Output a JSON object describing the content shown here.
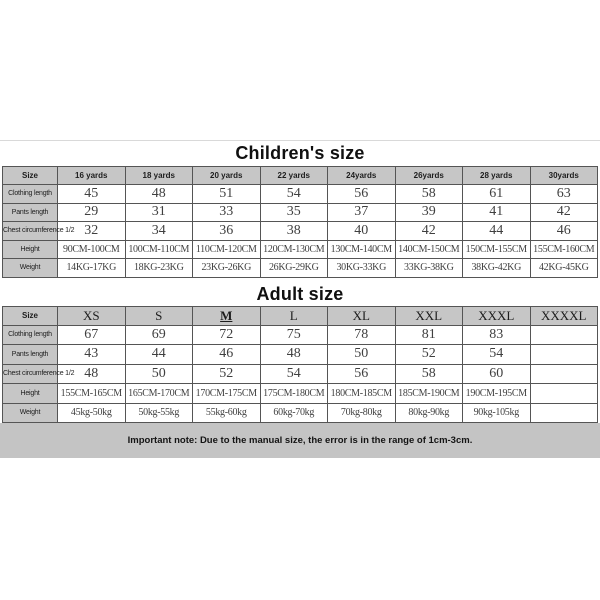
{
  "page": {
    "background": "#ffffff"
  },
  "colors": {
    "cell_grey": "#c6c6c6",
    "note_strip_grey": "#c4c4c4",
    "table_border": "#555555",
    "title_text": "#101010",
    "data_text": "#3f3f3f"
  },
  "children_table": {
    "title": "Children's size",
    "header": [
      "Size",
      "16 yards",
      "18 yards",
      "20 yards",
      "22 yards",
      "24yards",
      "26yards",
      "28 yards",
      "30yards"
    ],
    "rows": [
      {
        "label": "Clothing length",
        "values": [
          "45",
          "48",
          "51",
          "54",
          "56",
          "58",
          "61",
          "63"
        ]
      },
      {
        "label": "Pants length",
        "values": [
          "29",
          "31",
          "33",
          "35",
          "37",
          "39",
          "41",
          "42"
        ]
      },
      {
        "label": "Chest circumference 1/2",
        "values": [
          "32",
          "34",
          "36",
          "38",
          "40",
          "42",
          "44",
          "46"
        ]
      },
      {
        "label": "Height",
        "values": [
          "90CM-100CM",
          "100CM-110CM",
          "110CM-120CM",
          "120CM-130CM",
          "130CM-140CM",
          "140CM-150CM",
          "150CM-155CM",
          "155CM-160CM"
        ]
      },
      {
        "label": "Weight",
        "values": [
          "14KG-17KG",
          "18KG-23KG",
          "23KG-26KG",
          "26KG-29KG",
          "30KG-33KG",
          "33KG-38KG",
          "38KG-42KG",
          "42KG-45KG"
        ]
      }
    ]
  },
  "adult_table": {
    "title": "Adult size",
    "underlined_header": "M",
    "header": [
      "Size",
      "XS",
      "S",
      "M",
      "L",
      "XL",
      "XXL",
      "XXXL",
      "XXXXL"
    ],
    "rows": [
      {
        "label": "Clothing length",
        "values": [
          "67",
          "69",
          "72",
          "75",
          "78",
          "81",
          "83",
          ""
        ]
      },
      {
        "label": "Pants length",
        "values": [
          "43",
          "44",
          "46",
          "48",
          "50",
          "52",
          "54",
          ""
        ]
      },
      {
        "label": "Chest circumference 1/2",
        "values": [
          "48",
          "50",
          "52",
          "54",
          "56",
          "58",
          "60",
          ""
        ]
      },
      {
        "label": "Height",
        "values": [
          "155CM-165CM",
          "165CM-170CM",
          "170CM-175CM",
          "175CM-180CM",
          "180CM-185CM",
          "185CM-190CM",
          "190CM-195CM",
          ""
        ]
      },
      {
        "label": "Weight",
        "values": [
          "45kg-50kg",
          "50kg-55kg",
          "55kg-60kg",
          "60kg-70kg",
          "70kg-80kg",
          "80kg-90kg",
          "90kg-105kg",
          ""
        ]
      }
    ]
  },
  "note": "Important note: Due to the manual size, the error is in the range of 1cm-3cm."
}
